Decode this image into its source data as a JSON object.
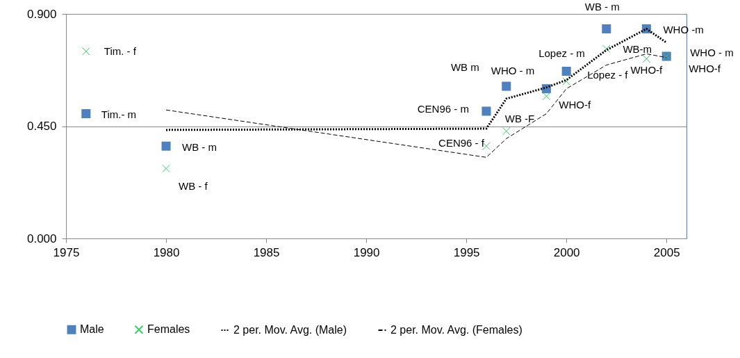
{
  "chart_data": {
    "type": "scatter",
    "series": [
      {
        "name": "Male",
        "marker": "square",
        "color": "#4f81bd",
        "x": [
          1976,
          1980,
          1996,
          1997,
          1999,
          2000,
          2002,
          2004,
          2005
        ],
        "values": [
          0.5,
          0.37,
          0.51,
          0.61,
          0.6,
          0.67,
          0.84,
          0.84,
          0.73
        ]
      },
      {
        "name": "Females",
        "marker": "cross",
        "color": "#33cc66",
        "x": [
          1976,
          1980,
          1996,
          1997,
          1999,
          2000,
          2002,
          2004,
          2005
        ],
        "values": [
          0.75,
          0.28,
          0.37,
          0.43,
          0.57,
          0.63,
          0.76,
          0.72,
          0.73
        ]
      },
      {
        "name": "2 per. Mov. Avg. (Male)",
        "type": "line",
        "line_style": "dotted",
        "color": "#000000",
        "x": [
          1980,
          1996,
          1997,
          1999,
          2000,
          2002,
          2004,
          2005
        ],
        "values": [
          0.435,
          0.44,
          0.56,
          0.605,
          0.635,
          0.755,
          0.84,
          0.785
        ]
      },
      {
        "name": "2 per. Mov. Avg. (Females)",
        "type": "line",
        "line_style": "dashed",
        "color": "#000000",
        "x": [
          1980,
          1996,
          1997,
          1999,
          2000,
          2002,
          2004,
          2005
        ],
        "values": [
          0.515,
          0.325,
          0.4,
          0.5,
          0.6,
          0.695,
          0.74,
          0.725
        ]
      }
    ],
    "xlim": [
      1975,
      2006
    ],
    "xticks": [
      1975,
      1980,
      1985,
      1990,
      1995,
      2000,
      2005
    ],
    "ylim": [
      0,
      0.9
    ],
    "yticks": [
      {
        "value": 0,
        "label": "0.000"
      },
      {
        "value": 0.45,
        "label": "0.450"
      },
      {
        "value": 0.9,
        "label": "0.900"
      }
    ],
    "grid": "y",
    "legend": "bottom",
    "annotations": [
      {
        "text": "Tim. - f",
        "x": 1976,
        "y": 0.75
      },
      {
        "text": "Tim.- m",
        "x": 1976,
        "y": 0.5
      },
      {
        "text": "WB  - m",
        "x": 1980,
        "y": 0.37
      },
      {
        "text": "WB - f",
        "x": 1980,
        "y": 0.28
      },
      {
        "text": "WB  m",
        "x": 1997,
        "y": 0.61
      },
      {
        "text": "CEN96 - m",
        "x": 1996,
        "y": 0.51
      },
      {
        "text": "WHO - m",
        "x": 1997,
        "y": 0.61
      },
      {
        "text": "WB -F",
        "x": 1997,
        "y": 0.43
      },
      {
        "text": "CEN96 - f",
        "x": 1996,
        "y": 0.37
      },
      {
        "text": "WHO-f",
        "x": 1999,
        "y": 0.57
      },
      {
        "text": "Lopez - m",
        "x": 2000,
        "y": 0.67
      },
      {
        "text": "Lopez - f",
        "x": 2000,
        "y": 0.63
      },
      {
        "text": "WB - m",
        "x": 2002,
        "y": 0.84
      },
      {
        "text": "WHO -m",
        "x": 2004,
        "y": 0.84
      },
      {
        "text": "WB-m",
        "x": 2004,
        "y": 0.72
      },
      {
        "text": "WHO-f",
        "x": 2004,
        "y": 0.72
      },
      {
        "text": "WHO - m",
        "x": 2005,
        "y": 0.73
      },
      {
        "text": "WHO-f",
        "x": 2005,
        "y": 0.73
      }
    ]
  }
}
